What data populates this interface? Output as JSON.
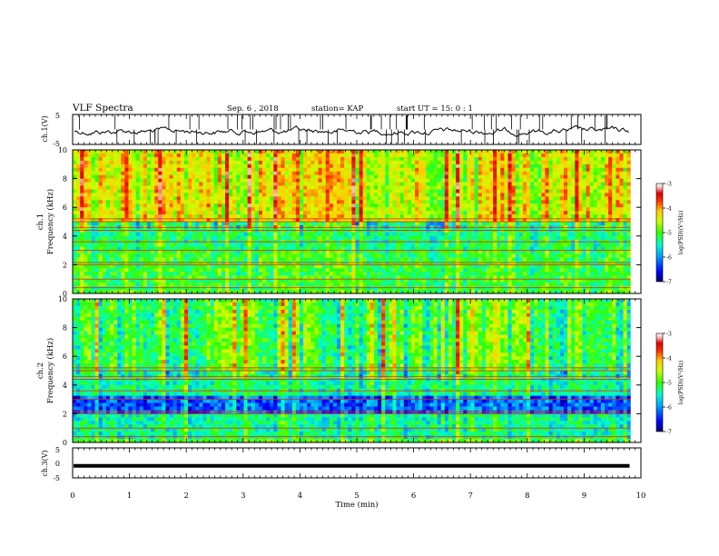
{
  "header": {
    "title": "VLF Spectra",
    "date": "Sep. 6 , 2018",
    "station": "station= KAP",
    "start": "start UT =  15: 0  : 1"
  },
  "colors": {
    "scale": [
      "#000066",
      "#0000ff",
      "#0088ff",
      "#00ddff",
      "#00ff88",
      "#33ff00",
      "#ccff00",
      "#ffff00",
      "#ffaa00",
      "#ff3300",
      "#dd0000",
      "#ffdddd",
      "#ffffff"
    ]
  },
  "chart_data": [
    {
      "type": "line",
      "ylabel": "ch.1(V)",
      "ylim": [
        -5,
        5
      ],
      "yticks": [
        "5",
        "-5"
      ],
      "xlim": [
        0,
        10
      ],
      "series": [
        {
          "values_description_free": true,
          "mean": 0,
          "spread": 2.2
        }
      ]
    },
    {
      "type": "heatmap",
      "ylabel": "ch.1\nFrequency (kHz)",
      "ylabel_top": "ch.1",
      "ylabel_bottom": "Frequency (kHz)",
      "ylim": [
        0,
        10
      ],
      "yticks": [
        "0",
        "2",
        "4",
        "6",
        "8",
        "10"
      ],
      "xlim": [
        0,
        10
      ],
      "xticks": [
        "0",
        "1",
        "2",
        "3",
        "4",
        "5",
        "6",
        "7",
        "8",
        "9",
        "10"
      ],
      "colorbar": {
        "label": "log(PSD)(V²/Hz)",
        "range": [
          -7,
          -3
        ],
        "ticks": [
          "-3",
          "-4",
          "-5",
          "-6",
          "-7"
        ]
      }
    },
    {
      "type": "heatmap",
      "ylabel_top": "ch.2",
      "ylabel_bottom": "Frequency (kHz)",
      "ylim": [
        0,
        10
      ],
      "yticks": [
        "0",
        "2",
        "4",
        "6",
        "8",
        "10"
      ],
      "xlim": [
        0,
        10
      ],
      "xticks": [
        "0",
        "1",
        "2",
        "3",
        "4",
        "5",
        "6",
        "7",
        "8",
        "9",
        "10"
      ],
      "colorbar": {
        "label": "log(PSD)(V²/Hz)",
        "range": [
          -7,
          -3
        ],
        "ticks": [
          "-3",
          "-4",
          "-5",
          "-6",
          "-7"
        ]
      }
    },
    {
      "type": "line",
      "ylabel": "ch.3(V)",
      "ylim": [
        -5,
        5
      ],
      "yticks": [
        "5",
        "0",
        "-5"
      ],
      "xlim": [
        0,
        10
      ],
      "xticks": [
        "0",
        "1",
        "2",
        "3",
        "4",
        "5",
        "6",
        "7",
        "8",
        "9",
        "10"
      ],
      "xlabel": "Time (min)",
      "series": [
        {
          "constant_value": -1,
          "x_end": 9.8
        }
      ]
    }
  ]
}
